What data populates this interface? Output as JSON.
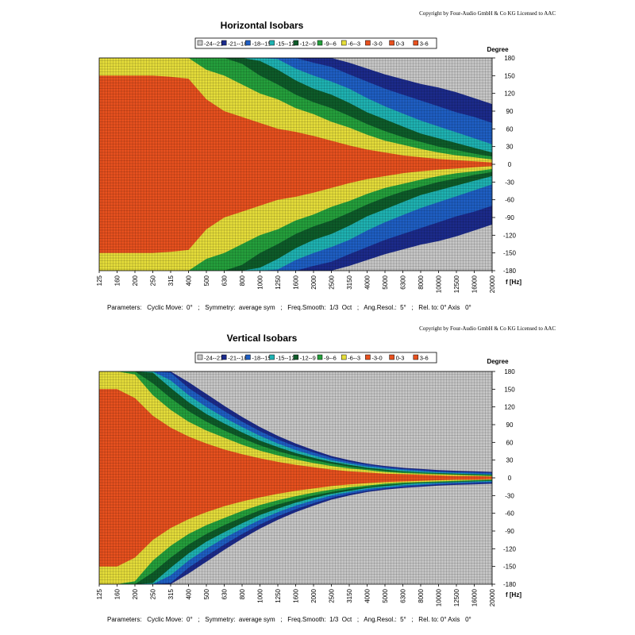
{
  "page": {
    "background": "#ffffff"
  },
  "level_colors": [
    {
      "range": "-24-21",
      "color": "#c8c8c8"
    },
    {
      "range": "-21--18",
      "color": "#1c2b8c"
    },
    {
      "range": "-18--15",
      "color": "#1f5fc4"
    },
    {
      "range": "-15--12",
      "color": "#1fb3b3"
    },
    {
      "range": "-12--9",
      "color": "#0e5c2a"
    },
    {
      "range": "-9--6",
      "color": "#25a03c"
    },
    {
      "range": "-6--3",
      "color": "#e6de3a"
    },
    {
      "range": "-3-0",
      "color": "#e8511f"
    },
    {
      "range": "0-3",
      "color": "#e8511f"
    },
    {
      "range": "3-6",
      "color": "#e8511f"
    }
  ],
  "chart_data": [
    {
      "type": "heatmap",
      "title": "Horizontal Isobars",
      "copyright": "Copyright by Four-Audio GmbH & Co KG   Licensed to AAC",
      "legend": [
        "-24--21",
        "-21--18",
        "-18--15",
        "-15--12",
        "-12--9",
        "-9--6",
        "-6--3",
        "-3-0",
        "0-3",
        "3-6"
      ],
      "xlabel": "f [Hz]",
      "ylabel": "Degree",
      "x_ticks": [
        "125",
        "160",
        "200",
        "250",
        "315",
        "400",
        "500",
        "630",
        "800",
        "1000",
        "1250",
        "1600",
        "2000",
        "2500",
        "3150",
        "4000",
        "5000",
        "6300",
        "8000",
        "10000",
        "12500",
        "16000",
        "20000"
      ],
      "y_ticks": [
        "180",
        "150",
        "120",
        "90",
        "60",
        "30",
        "0",
        "-30",
        "-60",
        "-90",
        "-120",
        "-150",
        "-180"
      ],
      "xlim": [
        125,
        20000
      ],
      "ylim": [
        -180,
        180
      ],
      "x_scale": "log",
      "grid": true,
      "legend_position": "top-center",
      "band_edge_degrees": {
        "-3": [
          150,
          150,
          150,
          150,
          148,
          145,
          110,
          90,
          80,
          70,
          60,
          55,
          48,
          40,
          32,
          25,
          20,
          15,
          12,
          9,
          7,
          5,
          3
        ],
        "-6": [
          200,
          200,
          200,
          200,
          200,
          200,
          160,
          150,
          135,
          120,
          110,
          95,
          85,
          72,
          62,
          50,
          40,
          33,
          26,
          20,
          15,
          12,
          8
        ],
        "-9": [
          200,
          200,
          200,
          200,
          200,
          200,
          200,
          200,
          170,
          150,
          135,
          118,
          105,
          95,
          82,
          68,
          56,
          46,
          38,
          30,
          24,
          18,
          13
        ],
        "-12": [
          200,
          200,
          200,
          200,
          200,
          200,
          200,
          200,
          200,
          175,
          160,
          142,
          128,
          118,
          104,
          88,
          76,
          64,
          52,
          44,
          36,
          28,
          20
        ],
        "-15": [
          200,
          200,
          200,
          200,
          200,
          200,
          200,
          200,
          200,
          200,
          178,
          162,
          150,
          140,
          128,
          112,
          98,
          86,
          74,
          64,
          54,
          44,
          34
        ],
        "-18": [
          200,
          200,
          200,
          200,
          200,
          200,
          200,
          200,
          200,
          200,
          200,
          182,
          172,
          165,
          152,
          140,
          128,
          118,
          108,
          98,
          88,
          80,
          70
        ],
        "-21": [
          200,
          200,
          200,
          200,
          200,
          200,
          200,
          200,
          200,
          200,
          200,
          200,
          190,
          182,
          172,
          162,
          152,
          144,
          136,
          130,
          122,
          112,
          102
        ]
      },
      "parameters": "Parameters:   Cyclic Move:  0°   ;   Symmetry:  average sym   ;   Freq.Smooth:  1/3  Oct   ;   Ang.Resol.:  5°   ;   Rel. to: 0° Axis   0°"
    },
    {
      "type": "heatmap",
      "title": "Vertical Isobars",
      "copyright": "Copyright by Four-Audio GmbH & Co KG   Licensed to AAC",
      "legend": [
        "-24--21",
        "-21--18",
        "-18--15",
        "-15--12",
        "-12--9",
        "-9--6",
        "-6--3",
        "-3-0",
        "0-3",
        "3-6"
      ],
      "xlabel": "f [Hz]",
      "ylabel": "Degree",
      "x_ticks": [
        "125",
        "160",
        "200",
        "250",
        "315",
        "400",
        "500",
        "630",
        "800",
        "1000",
        "1250",
        "1600",
        "2000",
        "2500",
        "3150",
        "4000",
        "5000",
        "6300",
        "8000",
        "10000",
        "12500",
        "16000",
        "20000"
      ],
      "y_ticks": [
        "180",
        "150",
        "120",
        "90",
        "60",
        "30",
        "0",
        "-30",
        "-60",
        "-90",
        "-120",
        "-150",
        "-180"
      ],
      "xlim": [
        125,
        20000
      ],
      "ylim": [
        -180,
        180
      ],
      "x_scale": "log",
      "grid": true,
      "legend_position": "top-center",
      "band_edge_degrees": {
        "-3": [
          150,
          150,
          135,
          105,
          85,
          70,
          58,
          48,
          40,
          33,
          27,
          22,
          18,
          14,
          11,
          9,
          7,
          6,
          5,
          4,
          3,
          3,
          2
        ],
        "-6": [
          200,
          200,
          175,
          140,
          115,
          95,
          80,
          68,
          56,
          46,
          38,
          31,
          25,
          20,
          16,
          13,
          10,
          8,
          7,
          6,
          5,
          4,
          3
        ],
        "-9": [
          200,
          200,
          200,
          160,
          135,
          113,
          95,
          80,
          67,
          55,
          45,
          37,
          30,
          24,
          19,
          15,
          12,
          10,
          8,
          7,
          6,
          5,
          4
        ],
        "-12": [
          200,
          200,
          200,
          178,
          152,
          128,
          108,
          92,
          77,
          63,
          52,
          42,
          34,
          27,
          22,
          17,
          14,
          11,
          9,
          8,
          7,
          6,
          5
        ],
        "-15": [
          200,
          200,
          200,
          195,
          165,
          140,
          120,
          102,
          86,
          71,
          58,
          47,
          38,
          30,
          24,
          19,
          16,
          13,
          11,
          9,
          8,
          7,
          6
        ],
        "-18": [
          200,
          200,
          200,
          200,
          178,
          152,
          132,
          113,
          95,
          79,
          65,
          53,
          43,
          34,
          27,
          22,
          18,
          15,
          13,
          11,
          10,
          9,
          8
        ],
        "-21": [
          200,
          200,
          200,
          200,
          200,
          162,
          142,
          122,
          103,
          86,
          71,
          58,
          47,
          37,
          30,
          24,
          20,
          17,
          15,
          13,
          12,
          11,
          10
        ]
      },
      "parameters": "Parameters:   Cyclic Move:  0°   ;   Symmetry:  average sym   ;   Freq.Smooth:  1/3  Oct   ;   Ang.Resol.:  5°   ;   Rel. to: 0° Axis   0°"
    }
  ]
}
